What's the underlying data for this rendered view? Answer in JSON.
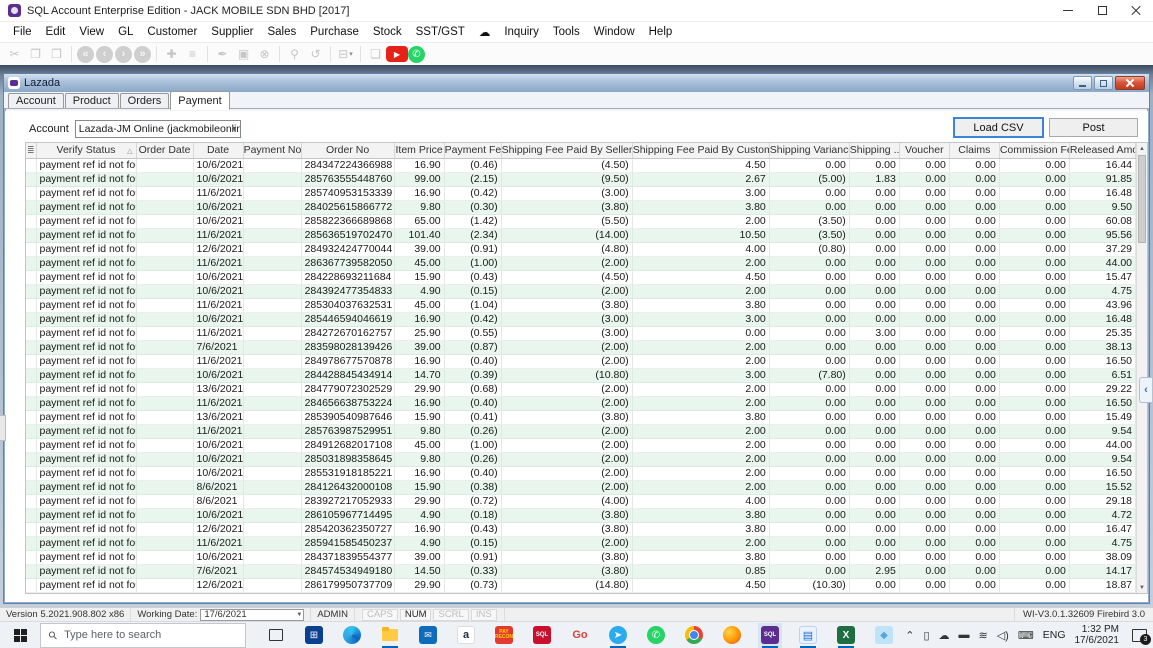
{
  "window": {
    "title": "SQL Account Enterprise Edition - JACK MOBILE SDN BHD [2017]"
  },
  "menus": [
    "File",
    "Edit",
    "View",
    "GL",
    "Customer",
    "Supplier",
    "Sales",
    "Purchase",
    "Stock",
    "SST/GST",
    "☁",
    "Inquiry",
    "Tools",
    "Window",
    "Help"
  ],
  "toolbar": [
    {
      "name": "cut-icon",
      "glyph": "✂",
      "kind": "dis"
    },
    {
      "name": "copy-icon",
      "glyph": "❐",
      "kind": "dis"
    },
    {
      "name": "paste-icon",
      "glyph": "❒",
      "kind": "dis"
    },
    {
      "sep": true
    },
    {
      "name": "first-record-icon",
      "glyph": "«",
      "kind": "nav"
    },
    {
      "name": "prev-record-icon",
      "glyph": "‹",
      "kind": "nav"
    },
    {
      "name": "next-record-icon",
      "glyph": "›",
      "kind": "nav"
    },
    {
      "name": "last-record-icon",
      "glyph": "»",
      "kind": "nav"
    },
    {
      "sep": true
    },
    {
      "name": "new-icon",
      "glyph": "✚",
      "kind": "dis"
    },
    {
      "name": "list-icon",
      "glyph": "≡",
      "kind": "dis"
    },
    {
      "sep": true
    },
    {
      "name": "edit-icon",
      "glyph": "✒",
      "kind": "dis"
    },
    {
      "name": "save-icon",
      "glyph": "▣",
      "kind": "dis"
    },
    {
      "name": "cancel-icon",
      "glyph": "⊗",
      "kind": "dis"
    },
    {
      "sep": true
    },
    {
      "name": "search-icon",
      "glyph": "⚲",
      "kind": "dis"
    },
    {
      "name": "refresh-icon",
      "glyph": "↺",
      "kind": "dis"
    },
    {
      "sep": true
    },
    {
      "name": "print-icon",
      "glyph": "⊟",
      "kind": "dis",
      "dropdown": "▾"
    },
    {
      "sep": true
    },
    {
      "name": "preview-icon",
      "glyph": "❏",
      "kind": "dis"
    },
    {
      "name": "youtube-icon",
      "glyph": "▶",
      "kind": "youtube"
    },
    {
      "name": "whatsapp-icon",
      "glyph": "✆",
      "kind": "whatsapp"
    }
  ],
  "lazada": {
    "title": "Lazada",
    "tabs": [
      "Account",
      "Product",
      "Orders",
      "Payment"
    ],
    "active_tab": "Payment",
    "account_label": "Account",
    "account_value": "Lazada-JM Online (jackmobileonline@gm",
    "load_csv_label": "Load CSV",
    "post_label": "Post"
  },
  "table": {
    "menu_icon": "≣",
    "sort_icon": "△",
    "headers": [
      "Verify Status",
      "Order Date",
      "Date",
      "Payment No",
      "Order No",
      "Item Price",
      "Payment Fee",
      "Shipping Fee Paid By Seller",
      "Shipping Fee Paid By Customer",
      "Shipping Variance",
      "Shipping ...",
      "Voucher",
      "Claims",
      "Commission Fee",
      "Released Amo..."
    ],
    "rows": [
      [
        "payment ref id not found",
        "",
        "10/6/2021",
        "",
        "284347224366988",
        "16.90",
        "(0.46)",
        "(4.50)",
        "4.50",
        "0.00",
        "0.00",
        "0.00",
        "0.00",
        "0.00",
        "16.44"
      ],
      [
        "payment ref id not found",
        "",
        "10/6/2021",
        "",
        "285763555448760",
        "99.00",
        "(2.15)",
        "(9.50)",
        "2.67",
        "(5.00)",
        "1.83",
        "0.00",
        "0.00",
        "0.00",
        "91.85"
      ],
      [
        "payment ref id not found",
        "",
        "11/6/2021",
        "",
        "285740953153339",
        "16.90",
        "(0.42)",
        "(3.00)",
        "3.00",
        "0.00",
        "0.00",
        "0.00",
        "0.00",
        "0.00",
        "16.48"
      ],
      [
        "payment ref id not found",
        "",
        "10/6/2021",
        "",
        "284025615866772",
        "9.80",
        "(0.30)",
        "(3.80)",
        "3.80",
        "0.00",
        "0.00",
        "0.00",
        "0.00",
        "0.00",
        "9.50"
      ],
      [
        "payment ref id not found",
        "",
        "10/6/2021",
        "",
        "285822366689868",
        "65.00",
        "(1.42)",
        "(5.50)",
        "2.00",
        "(3.50)",
        "0.00",
        "0.00",
        "0.00",
        "0.00",
        "60.08"
      ],
      [
        "payment ref id not found",
        "",
        "11/6/2021",
        "",
        "285636519702470",
        "101.40",
        "(2.34)",
        "(14.00)",
        "10.50",
        "(3.50)",
        "0.00",
        "0.00",
        "0.00",
        "0.00",
        "95.56"
      ],
      [
        "payment ref id not found",
        "",
        "12/6/2021",
        "",
        "284932424770044",
        "39.00",
        "(0.91)",
        "(4.80)",
        "4.00",
        "(0.80)",
        "0.00",
        "0.00",
        "0.00",
        "0.00",
        "37.29"
      ],
      [
        "payment ref id not found",
        "",
        "11/6/2021",
        "",
        "286367739582050",
        "45.00",
        "(1.00)",
        "(2.00)",
        "2.00",
        "0.00",
        "0.00",
        "0.00",
        "0.00",
        "0.00",
        "44.00"
      ],
      [
        "payment ref id not found",
        "",
        "10/6/2021",
        "",
        "284228693211684",
        "15.90",
        "(0.43)",
        "(4.50)",
        "4.50",
        "0.00",
        "0.00",
        "0.00",
        "0.00",
        "0.00",
        "15.47"
      ],
      [
        "payment ref id not found",
        "",
        "10/6/2021",
        "",
        "284392477354833",
        "4.90",
        "(0.15)",
        "(2.00)",
        "2.00",
        "0.00",
        "0.00",
        "0.00",
        "0.00",
        "0.00",
        "4.75"
      ],
      [
        "payment ref id not found",
        "",
        "11/6/2021",
        "",
        "285304037632531",
        "45.00",
        "(1.04)",
        "(3.80)",
        "3.80",
        "0.00",
        "0.00",
        "0.00",
        "0.00",
        "0.00",
        "43.96"
      ],
      [
        "payment ref id not found",
        "",
        "10/6/2021",
        "",
        "285446594046619",
        "16.90",
        "(0.42)",
        "(3.00)",
        "3.00",
        "0.00",
        "0.00",
        "0.00",
        "0.00",
        "0.00",
        "16.48"
      ],
      [
        "payment ref id not found",
        "",
        "11/6/2021",
        "",
        "284272670162757",
        "25.90",
        "(0.55)",
        "(3.00)",
        "0.00",
        "0.00",
        "3.00",
        "0.00",
        "0.00",
        "0.00",
        "25.35"
      ],
      [
        "payment ref id not found",
        "",
        "7/6/2021",
        "",
        "283598028139426",
        "39.00",
        "(0.87)",
        "(2.00)",
        "2.00",
        "0.00",
        "0.00",
        "0.00",
        "0.00",
        "0.00",
        "38.13"
      ],
      [
        "payment ref id not found",
        "",
        "11/6/2021",
        "",
        "284978677570878",
        "16.90",
        "(0.40)",
        "(2.00)",
        "2.00",
        "0.00",
        "0.00",
        "0.00",
        "0.00",
        "0.00",
        "16.50"
      ],
      [
        "payment ref id not found",
        "",
        "10/6/2021",
        "",
        "284428845434914",
        "14.70",
        "(0.39)",
        "(10.80)",
        "3.00",
        "(7.80)",
        "0.00",
        "0.00",
        "0.00",
        "0.00",
        "6.51"
      ],
      [
        "payment ref id not found",
        "",
        "13/6/2021",
        "",
        "284779072302529",
        "29.90",
        "(0.68)",
        "(2.00)",
        "2.00",
        "0.00",
        "0.00",
        "0.00",
        "0.00",
        "0.00",
        "29.22"
      ],
      [
        "payment ref id not found",
        "",
        "11/6/2021",
        "",
        "284656638753224",
        "16.90",
        "(0.40)",
        "(2.00)",
        "2.00",
        "0.00",
        "0.00",
        "0.00",
        "0.00",
        "0.00",
        "16.50"
      ],
      [
        "payment ref id not found",
        "",
        "13/6/2021",
        "",
        "285390540987646",
        "15.90",
        "(0.41)",
        "(3.80)",
        "3.80",
        "0.00",
        "0.00",
        "0.00",
        "0.00",
        "0.00",
        "15.49"
      ],
      [
        "payment ref id not found",
        "",
        "11/6/2021",
        "",
        "285763987529951",
        "9.80",
        "(0.26)",
        "(2.00)",
        "2.00",
        "0.00",
        "0.00",
        "0.00",
        "0.00",
        "0.00",
        "9.54"
      ],
      [
        "payment ref id not found",
        "",
        "10/6/2021",
        "",
        "284912682017108",
        "45.00",
        "(1.00)",
        "(2.00)",
        "2.00",
        "0.00",
        "0.00",
        "0.00",
        "0.00",
        "0.00",
        "44.00"
      ],
      [
        "payment ref id not found",
        "",
        "10/6/2021",
        "",
        "285031898358645",
        "9.80",
        "(0.26)",
        "(2.00)",
        "2.00",
        "0.00",
        "0.00",
        "0.00",
        "0.00",
        "0.00",
        "9.54"
      ],
      [
        "payment ref id not found",
        "",
        "10/6/2021",
        "",
        "285531918185221",
        "16.90",
        "(0.40)",
        "(2.00)",
        "2.00",
        "0.00",
        "0.00",
        "0.00",
        "0.00",
        "0.00",
        "16.50"
      ],
      [
        "payment ref id not found",
        "",
        "8/6/2021",
        "",
        "284126432000108",
        "15.90",
        "(0.38)",
        "(2.00)",
        "2.00",
        "0.00",
        "0.00",
        "0.00",
        "0.00",
        "0.00",
        "15.52"
      ],
      [
        "payment ref id not found",
        "",
        "8/6/2021",
        "",
        "283927217052933",
        "29.90",
        "(0.72)",
        "(4.00)",
        "4.00",
        "0.00",
        "0.00",
        "0.00",
        "0.00",
        "0.00",
        "29.18"
      ],
      [
        "payment ref id not found",
        "",
        "10/6/2021",
        "",
        "286105967714495",
        "4.90",
        "(0.18)",
        "(3.80)",
        "3.80",
        "0.00",
        "0.00",
        "0.00",
        "0.00",
        "0.00",
        "4.72"
      ],
      [
        "payment ref id not found",
        "",
        "12/6/2021",
        "",
        "285420362350727",
        "16.90",
        "(0.43)",
        "(3.80)",
        "3.80",
        "0.00",
        "0.00",
        "0.00",
        "0.00",
        "0.00",
        "16.47"
      ],
      [
        "payment ref id not found",
        "",
        "11/6/2021",
        "",
        "285941585450237",
        "4.90",
        "(0.15)",
        "(2.00)",
        "2.00",
        "0.00",
        "0.00",
        "0.00",
        "0.00",
        "0.00",
        "4.75"
      ],
      [
        "payment ref id not found",
        "",
        "10/6/2021",
        "",
        "284371839554377",
        "39.00",
        "(0.91)",
        "(3.80)",
        "3.80",
        "0.00",
        "0.00",
        "0.00",
        "0.00",
        "0.00",
        "38.09"
      ],
      [
        "payment ref id not found",
        "",
        "7/6/2021",
        "",
        "284574534949180",
        "14.50",
        "(0.33)",
        "(3.80)",
        "0.85",
        "0.00",
        "2.95",
        "0.00",
        "0.00",
        "0.00",
        "14.17"
      ],
      [
        "payment ref id not found",
        "",
        "12/6/2021",
        "",
        "286179950737709",
        "29.90",
        "(0.73)",
        "(14.80)",
        "4.50",
        "(10.30)",
        "0.00",
        "0.00",
        "0.00",
        "0.00",
        "18.87"
      ]
    ]
  },
  "statusbar": {
    "version": "Version 5.2021.908.802 x86",
    "working_date_label": "Working Date:",
    "working_date": "17/6/2021",
    "user": "ADMIN",
    "locks": [
      {
        "label": "CAPS",
        "active": false
      },
      {
        "label": "NUM",
        "active": true
      },
      {
        "label": "SCRL",
        "active": false
      },
      {
        "label": "INS",
        "active": false
      }
    ],
    "build": "WI-V3.0.1.32609 Firebird 3.0"
  },
  "taskbar": {
    "search_placeholder": "Type here to search",
    "apps": [
      {
        "name": "task-view-icon",
        "cls": "ico-taskview",
        "glyph": "",
        "open": false
      },
      {
        "name": "store-icon",
        "cls": "",
        "glyph": "⊞",
        "bg": "#0b3f8f",
        "open": false
      },
      {
        "name": "edge-icon",
        "cls": "ico-edge circle",
        "glyph": "",
        "open": false
      },
      {
        "name": "file-explorer-icon",
        "cls": "ico-folder",
        "glyph": "",
        "open": true
      },
      {
        "name": "mail-icon",
        "cls": "ico-mail",
        "glyph": "✉",
        "open": false
      },
      {
        "name": "amazon-icon",
        "cls": "ico-amazon",
        "glyph": "a",
        "open": false
      },
      {
        "name": "payrecon-icon",
        "cls": "ico-payrecon",
        "glyph": "PAY RECON",
        "open": false
      },
      {
        "name": "sql-payroll-icon",
        "cls": "ico-sqlred",
        "glyph": "SQL",
        "open": false
      },
      {
        "name": "go-icon",
        "cls": "ico-go",
        "glyph": "Go",
        "open": false
      },
      {
        "name": "telegram-icon",
        "cls": "ico-telegram circle",
        "glyph": "➤",
        "open": true
      },
      {
        "name": "whatsapp-icon",
        "cls": "ico-whatsapp circle",
        "glyph": "✆",
        "open": false
      },
      {
        "name": "chrome-icon",
        "cls": "ico-chrome circle",
        "glyph": "",
        "open": false
      },
      {
        "name": "firefox-icon",
        "cls": "ico-firefox circle",
        "glyph": "",
        "open": false
      },
      {
        "name": "sql-account-icon",
        "cls": "ico-sqlacct",
        "glyph": "SQL",
        "open": true,
        "active": true
      },
      {
        "name": "sticky-notes-icon",
        "cls": "ico-notes",
        "glyph": "▤",
        "open": true
      },
      {
        "name": "excel-icon",
        "cls": "ico-excel",
        "glyph": "X",
        "open": true
      },
      {
        "name": "paint3d-icon",
        "cls": "ico-paint",
        "glyph": "◆",
        "open": false
      }
    ],
    "tray": [
      {
        "name": "chevron-up-icon",
        "glyph": "⌃"
      },
      {
        "name": "phone-link-icon",
        "glyph": "▯"
      },
      {
        "name": "onedrive-icon",
        "glyph": "☁"
      },
      {
        "name": "usb-icon",
        "glyph": "▬"
      },
      {
        "name": "wifi-icon",
        "glyph": "≋"
      },
      {
        "name": "volume-icon",
        "glyph": "◁)"
      },
      {
        "name": "touch-keyboard-icon",
        "glyph": "⌨"
      }
    ],
    "language": "ENG",
    "time": "1:32 PM",
    "date": "17/6/2021",
    "notification_count": "3"
  }
}
